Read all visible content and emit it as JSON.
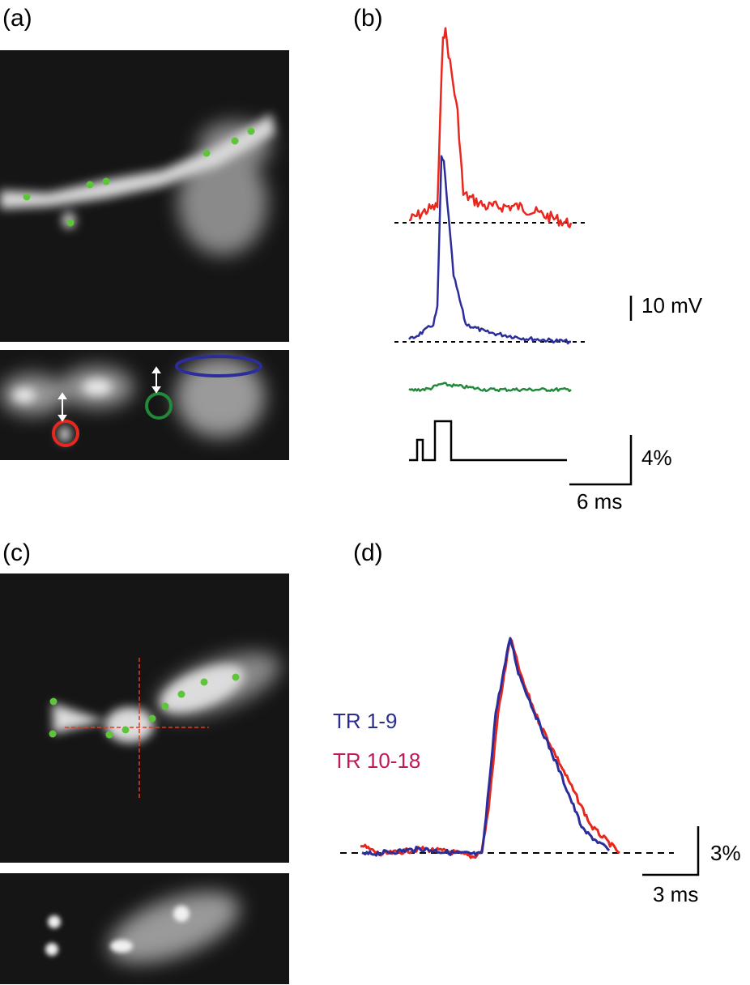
{
  "panels": [
    {
      "label": "(a)"
    },
    {
      "label": "(b)",
      "scale_bars": [
        "10 mV",
        "4%",
        "6 ms"
      ]
    },
    {
      "label": "(c)"
    },
    {
      "label": "(d)",
      "legend": [
        "TR 1-9",
        "TR 10-18"
      ],
      "scale_bars": [
        "3%",
        "3 ms"
      ]
    }
  ]
}
